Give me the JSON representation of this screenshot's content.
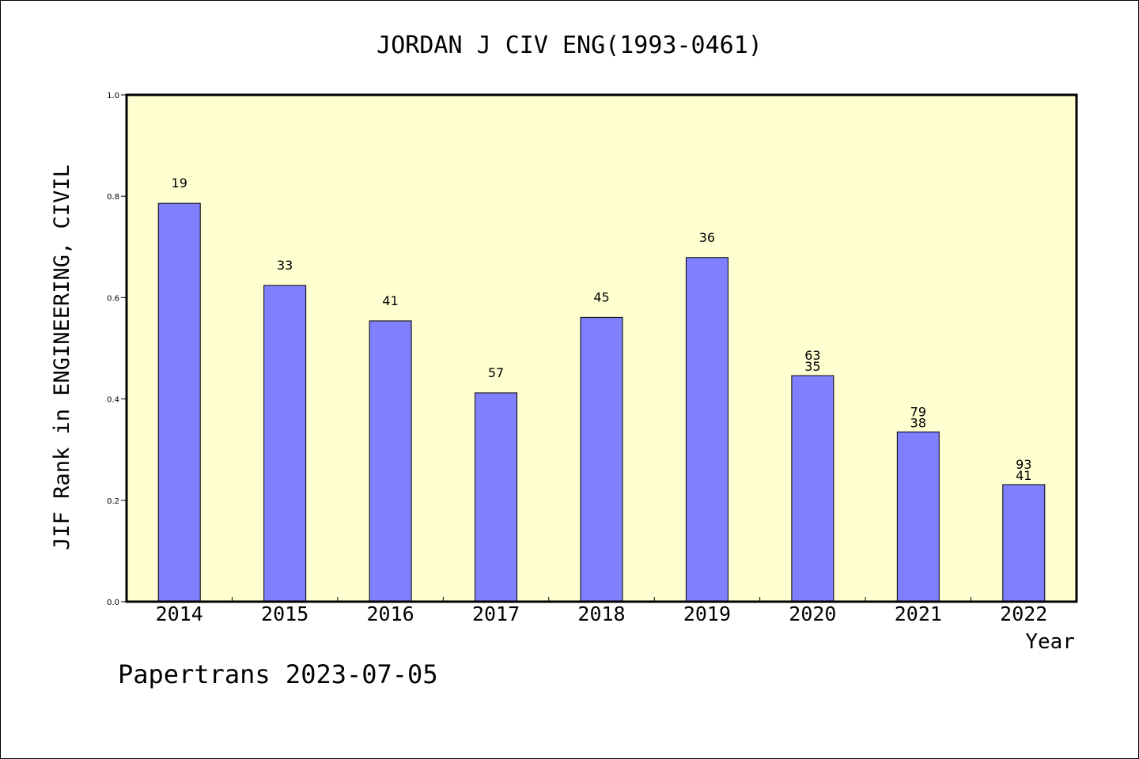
{
  "chart_data": {
    "type": "bar",
    "title": "JORDAN J CIV ENG(1993-0461)",
    "ylabel": "JIF Rank in ENGINEERING, CIVIL",
    "xlabel": "Year",
    "ylim": [
      0,
      1.0
    ],
    "yticks": [
      "0.0",
      "0.2",
      "0.4",
      "0.6",
      "0.8",
      "1.0"
    ],
    "categories": [
      "2014",
      "2015",
      "2016",
      "2017",
      "2018",
      "2019",
      "2020",
      "2021",
      "2022"
    ],
    "values": [
      0.786,
      0.624,
      0.554,
      0.412,
      0.561,
      0.679,
      0.446,
      0.335,
      0.231
    ],
    "labels_top": [
      "19",
      "33",
      "41",
      "57",
      "45",
      "36",
      "63",
      "79",
      "93"
    ],
    "labels_bottom": [
      "",
      "",
      "",
      "",
      "",
      "",
      "35",
      "38",
      "41"
    ],
    "colors": {
      "plot_bg": "#ffffd2",
      "bar": "#8080ff"
    },
    "grid": false
  },
  "footer": "Papertrans 2023-07-05"
}
